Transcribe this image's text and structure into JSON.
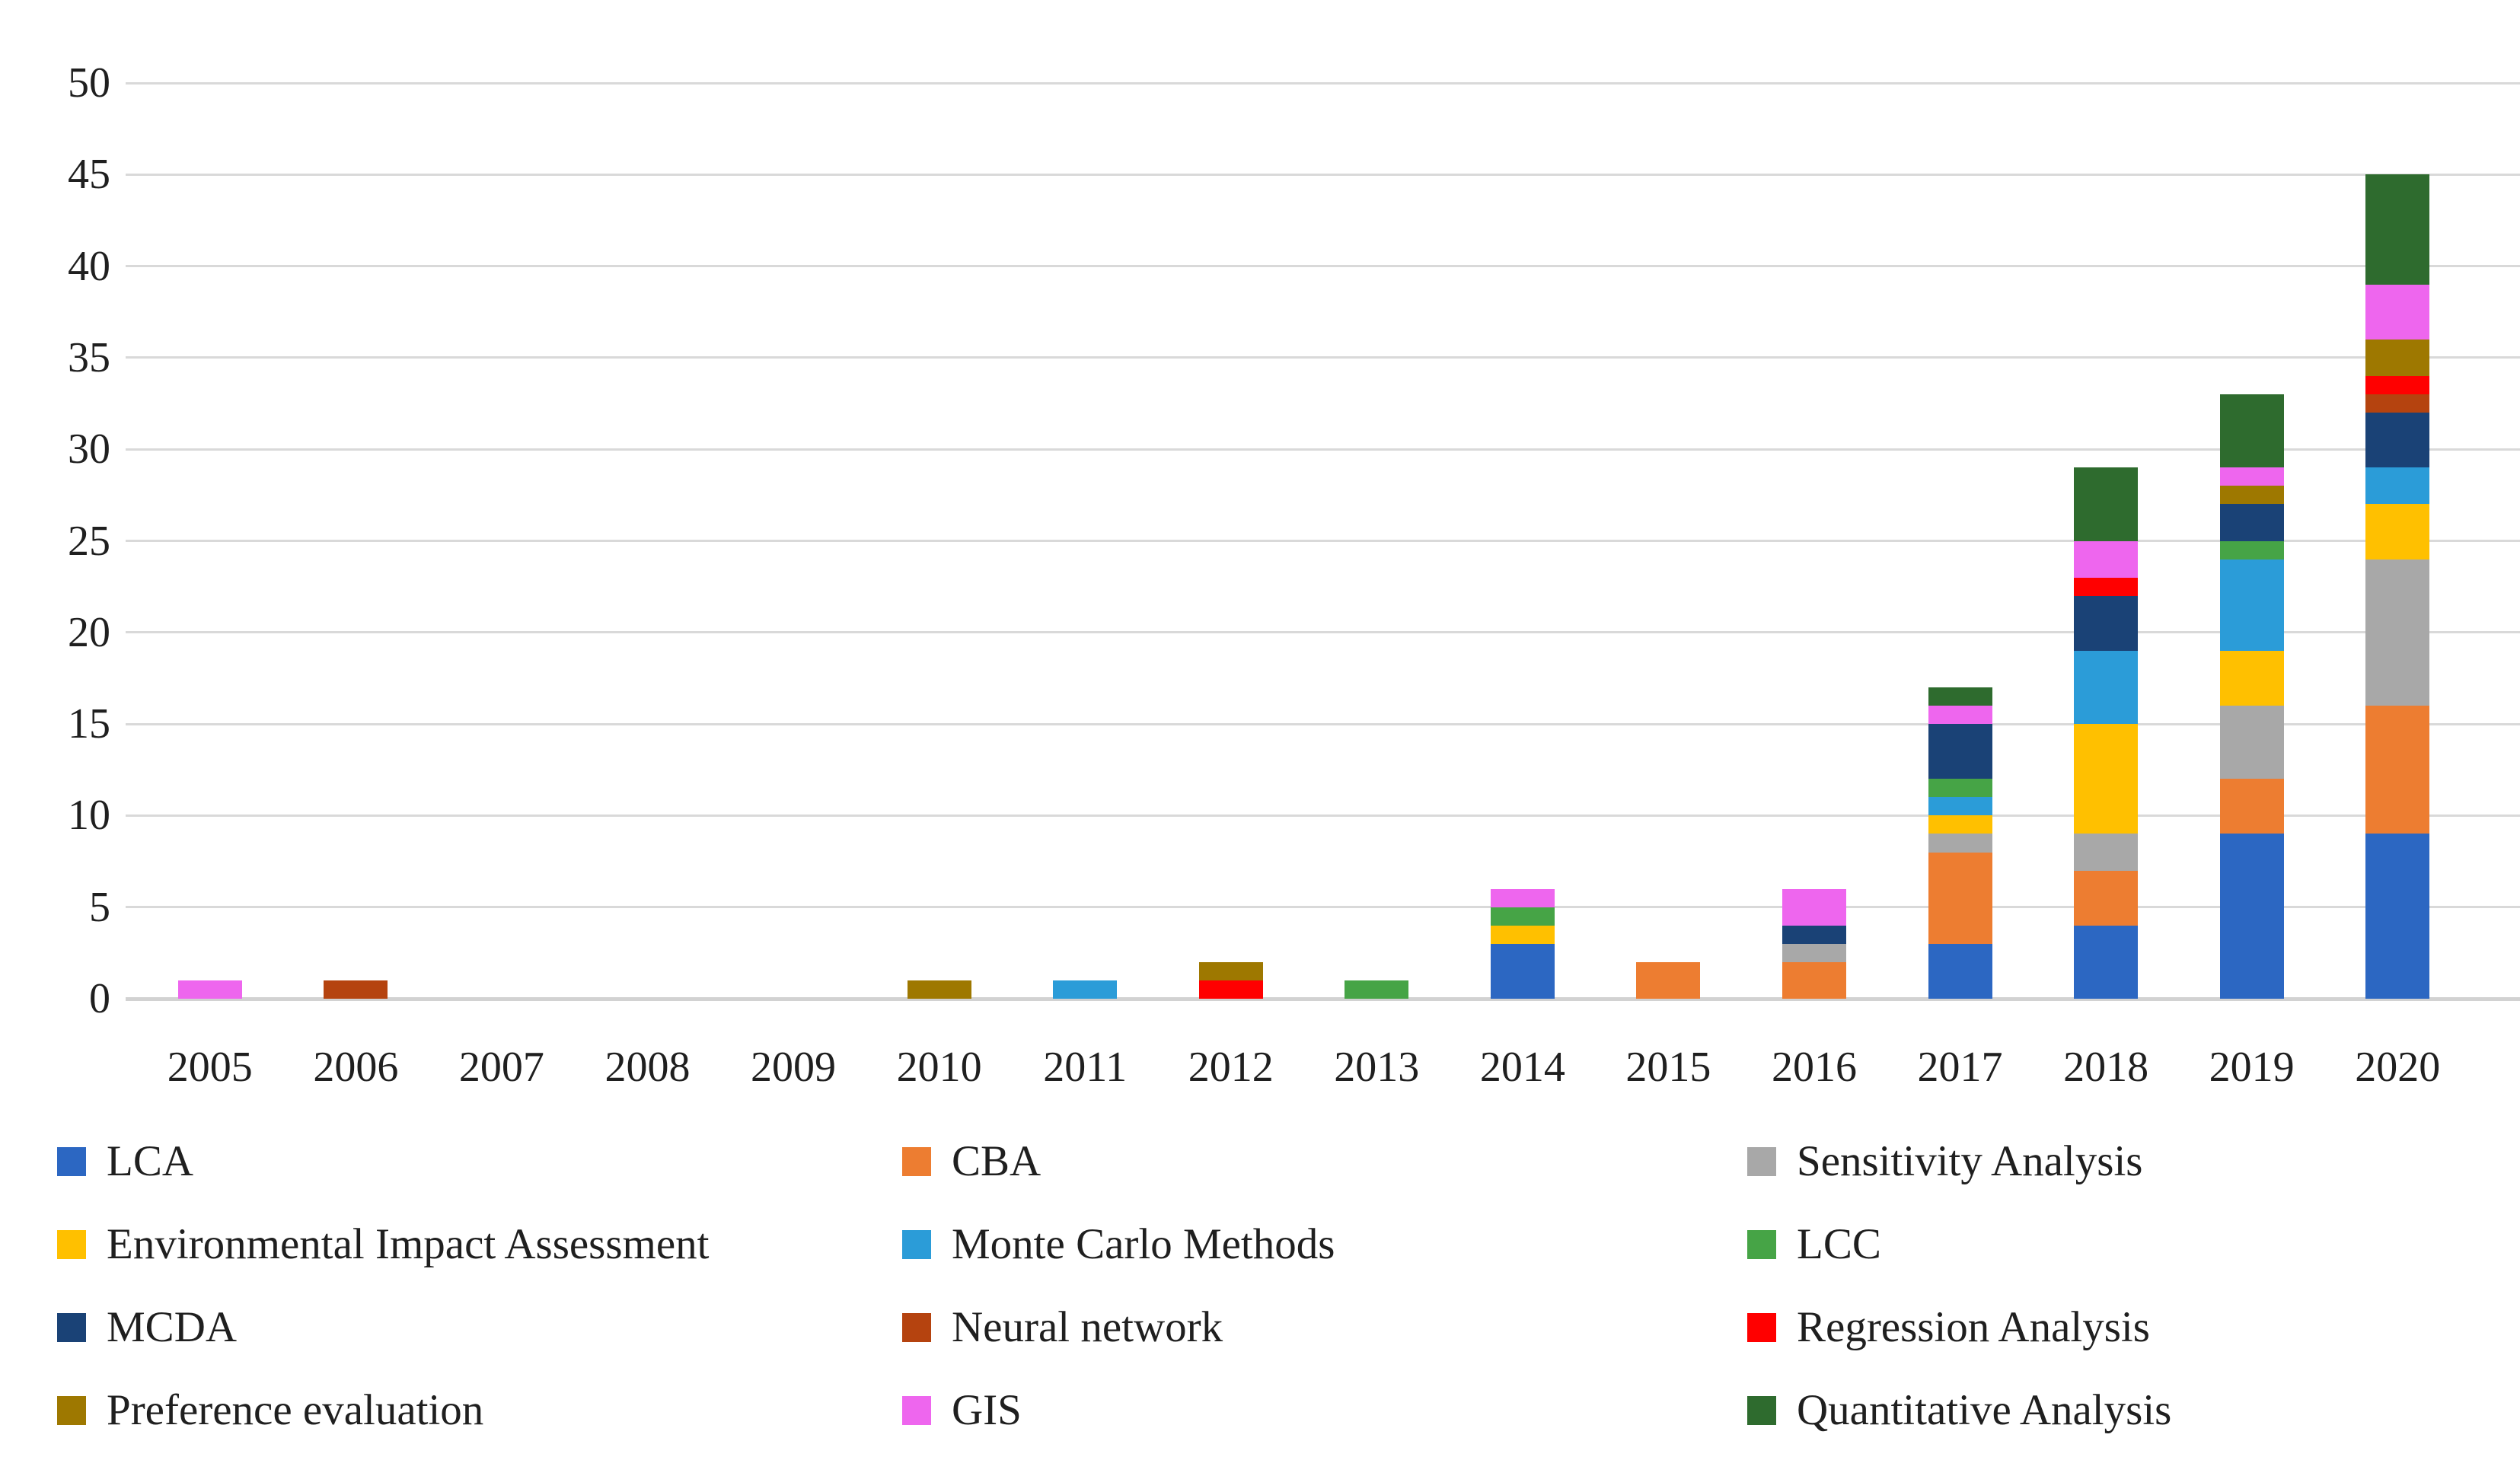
{
  "chart_data": {
    "type": "bar",
    "stacked": true,
    "title": "",
    "xlabel": "",
    "ylabel": "",
    "grid": true,
    "legend_position": "bottom",
    "categories": [
      "2005",
      "2006",
      "2007",
      "2008",
      "2009",
      "2010",
      "2011",
      "2012",
      "2013",
      "2014",
      "2015",
      "2016",
      "2017",
      "2018",
      "2019",
      "2020"
    ],
    "y_axis": {
      "min": 0,
      "max": 50,
      "step": 5,
      "ticks": [
        "0",
        "5",
        "10",
        "15",
        "20",
        "25",
        "30",
        "35",
        "40",
        "45",
        "50"
      ]
    },
    "series": [
      {
        "name": "LCA",
        "color": "#2C67C2",
        "values": [
          0,
          0,
          0,
          0,
          0,
          0,
          0,
          0,
          0,
          3,
          0,
          0,
          3,
          4,
          9,
          9
        ]
      },
      {
        "name": "CBA",
        "color": "#ED7D31",
        "values": [
          0,
          0,
          0,
          0,
          0,
          0,
          0,
          0,
          0,
          0,
          2,
          2,
          5,
          3,
          3,
          7
        ]
      },
      {
        "name": "Sensitivity Analysis",
        "color": "#A8A8A8",
        "values": [
          0,
          0,
          0,
          0,
          0,
          0,
          0,
          0,
          0,
          0,
          0,
          1,
          1,
          2,
          4,
          8
        ]
      },
      {
        "name": "Environmental Impact Assessment",
        "color": "#FFC000",
        "values": [
          0,
          0,
          0,
          0,
          0,
          0,
          0,
          0,
          0,
          1,
          0,
          0,
          1,
          6,
          3,
          3
        ]
      },
      {
        "name": "Monte Carlo Methods",
        "color": "#2B9CD8",
        "values": [
          0,
          0,
          0,
          0,
          0,
          0,
          1,
          0,
          0,
          0,
          0,
          0,
          1,
          4,
          5,
          2
        ]
      },
      {
        "name": "LCC",
        "color": "#46A446",
        "values": [
          0,
          0,
          0,
          0,
          0,
          0,
          0,
          0,
          1,
          1,
          0,
          0,
          1,
          0,
          1,
          0
        ]
      },
      {
        "name": "MCDA",
        "color": "#1A4276",
        "values": [
          0,
          0,
          0,
          0,
          0,
          0,
          0,
          0,
          0,
          0,
          0,
          1,
          3,
          3,
          2,
          3
        ]
      },
      {
        "name": "Neural network",
        "color": "#B5430F",
        "values": [
          0,
          1,
          0,
          0,
          0,
          0,
          0,
          0,
          0,
          0,
          0,
          0,
          0,
          0,
          0,
          1
        ]
      },
      {
        "name": "Regression Analysis",
        "color": "#FF0000",
        "values": [
          0,
          0,
          0,
          0,
          0,
          0,
          0,
          1,
          0,
          0,
          0,
          0,
          0,
          1,
          0,
          1
        ]
      },
      {
        "name": "Preference evaluation",
        "color": "#9E7800",
        "values": [
          0,
          0,
          0,
          0,
          0,
          1,
          0,
          1,
          0,
          0,
          0,
          0,
          0,
          0,
          1,
          2
        ]
      },
      {
        "name": "GIS",
        "color": "#EE66EE",
        "values": [
          1,
          0,
          0,
          0,
          0,
          0,
          0,
          0,
          0,
          1,
          0,
          2,
          1,
          2,
          1,
          3
        ]
      },
      {
        "name": "Quantitative Analysis",
        "color": "#2E6B2E",
        "values": [
          0,
          0,
          0,
          0,
          0,
          0,
          0,
          0,
          0,
          0,
          0,
          0,
          1,
          4,
          4,
          6
        ]
      }
    ]
  }
}
